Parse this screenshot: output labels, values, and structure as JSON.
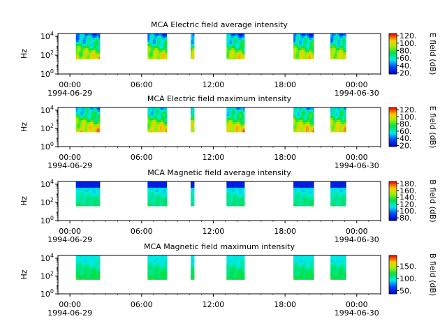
{
  "chart_data": [
    {
      "type": "heatmap",
      "title": "MCA  Electric field average intensity",
      "ylabel": "Hz",
      "ylim": [
        1,
        20000
      ],
      "yscale": "log",
      "y_ticks": [
        {
          "v": 1,
          "b": "10",
          "e": "0"
        },
        {
          "v": 100,
          "b": "10",
          "e": "2"
        },
        {
          "v": 10000,
          "b": "10",
          "e": "4"
        }
      ],
      "xlim_hours": [
        -1,
        26
      ],
      "x_ticks": [
        {
          "h": 0,
          "t": "00:00",
          "d": "1994-06-29"
        },
        {
          "h": 6,
          "t": "06:00",
          "d": ""
        },
        {
          "h": 12,
          "t": "12:00",
          "d": ""
        },
        {
          "h": 18,
          "t": "18:00",
          "d": ""
        },
        {
          "h": 24,
          "t": "00:00",
          "d": "1994-06-30"
        }
      ],
      "colorbar": {
        "label": "E field (dB)",
        "range": [
          17,
          126
        ],
        "ticks": [
          20,
          40,
          60,
          80,
          100,
          120
        ]
      },
      "profile": "e_avg",
      "data_intervals_hours": [
        [
          0.5,
          2.5
        ],
        [
          6.5,
          8.1
        ],
        [
          10.1,
          10.4
        ],
        [
          13.1,
          14.6
        ],
        [
          18.7,
          20.4
        ],
        [
          21.8,
          23.1
        ]
      ]
    },
    {
      "type": "heatmap",
      "title": "MCA  Electric field maximum intensity",
      "ylabel": "Hz",
      "ylim": [
        1,
        20000
      ],
      "yscale": "log",
      "y_ticks": [
        {
          "v": 1,
          "b": "10",
          "e": "0"
        },
        {
          "v": 100,
          "b": "10",
          "e": "2"
        },
        {
          "v": 10000,
          "b": "10",
          "e": "4"
        }
      ],
      "xlim_hours": [
        -1,
        26
      ],
      "x_ticks": [
        {
          "h": 0,
          "t": "00:00",
          "d": "1994-06-29"
        },
        {
          "h": 6,
          "t": "06:00",
          "d": ""
        },
        {
          "h": 12,
          "t": "12:00",
          "d": ""
        },
        {
          "h": 18,
          "t": "18:00",
          "d": ""
        },
        {
          "h": 24,
          "t": "00:00",
          "d": "1994-06-30"
        }
      ],
      "colorbar": {
        "label": "E field (dB)",
        "range": [
          17,
          126
        ],
        "ticks": [
          20,
          40,
          60,
          80,
          100,
          120
        ]
      },
      "profile": "e_max",
      "data_intervals_hours": [
        [
          0.5,
          2.5
        ],
        [
          6.5,
          8.1
        ],
        [
          10.1,
          10.4
        ],
        [
          13.1,
          14.6
        ],
        [
          18.7,
          20.4
        ],
        [
          21.8,
          23.1
        ]
      ]
    },
    {
      "type": "heatmap",
      "title": "MCA  Magnetic field average intensity",
      "ylabel": "Hz",
      "ylim": [
        1,
        20000
      ],
      "yscale": "log",
      "y_ticks": [
        {
          "v": 1,
          "b": "10",
          "e": "0"
        },
        {
          "v": 100,
          "b": "10",
          "e": "2"
        },
        {
          "v": 10000,
          "b": "10",
          "e": "4"
        }
      ],
      "xlim_hours": [
        -1,
        26
      ],
      "x_ticks": [
        {
          "h": 0,
          "t": "00:00",
          "d": "1994-06-29"
        },
        {
          "h": 6,
          "t": "06:00",
          "d": ""
        },
        {
          "h": 12,
          "t": "12:00",
          "d": ""
        },
        {
          "h": 18,
          "t": "18:00",
          "d": ""
        },
        {
          "h": 24,
          "t": "00:00",
          "d": "1994-06-30"
        }
      ],
      "colorbar": {
        "label": "B field (dB)",
        "range": [
          72,
          186
        ],
        "ticks": [
          80,
          100,
          120,
          140,
          160,
          180
        ]
      },
      "profile": "b_avg",
      "data_intervals_hours": [
        [
          0.5,
          2.5
        ],
        [
          6.5,
          8.1
        ],
        [
          10.1,
          10.4
        ],
        [
          13.1,
          14.6
        ],
        [
          18.7,
          20.4
        ],
        [
          21.8,
          23.1
        ]
      ]
    },
    {
      "type": "heatmap",
      "title": "MCA  Magnetic field maximum intensity",
      "ylabel": "Hz",
      "ylim": [
        1,
        20000
      ],
      "yscale": "log",
      "y_ticks": [
        {
          "v": 1,
          "b": "10",
          "e": "0"
        },
        {
          "v": 100,
          "b": "10",
          "e": "2"
        },
        {
          "v": 10000,
          "b": "10",
          "e": "4"
        }
      ],
      "xlim_hours": [
        -1,
        26
      ],
      "x_ticks": [
        {
          "h": 0,
          "t": "00:00",
          "d": "1994-06-29"
        },
        {
          "h": 6,
          "t": "06:00",
          "d": ""
        },
        {
          "h": 12,
          "t": "12:00",
          "d": ""
        },
        {
          "h": 18,
          "t": "18:00",
          "d": ""
        },
        {
          "h": 24,
          "t": "00:00",
          "d": "1994-06-30"
        }
      ],
      "colorbar": {
        "label": "B field (dB)",
        "range": [
          37,
          195
        ],
        "ticks": [
          50,
          100,
          150
        ]
      },
      "profile": "b_max",
      "data_intervals_hours": [
        [
          0.5,
          2.5
        ],
        [
          6.5,
          8.1
        ],
        [
          10.1,
          10.4
        ],
        [
          13.1,
          14.6
        ],
        [
          18.7,
          20.4
        ],
        [
          21.8,
          23.1
        ]
      ]
    }
  ]
}
